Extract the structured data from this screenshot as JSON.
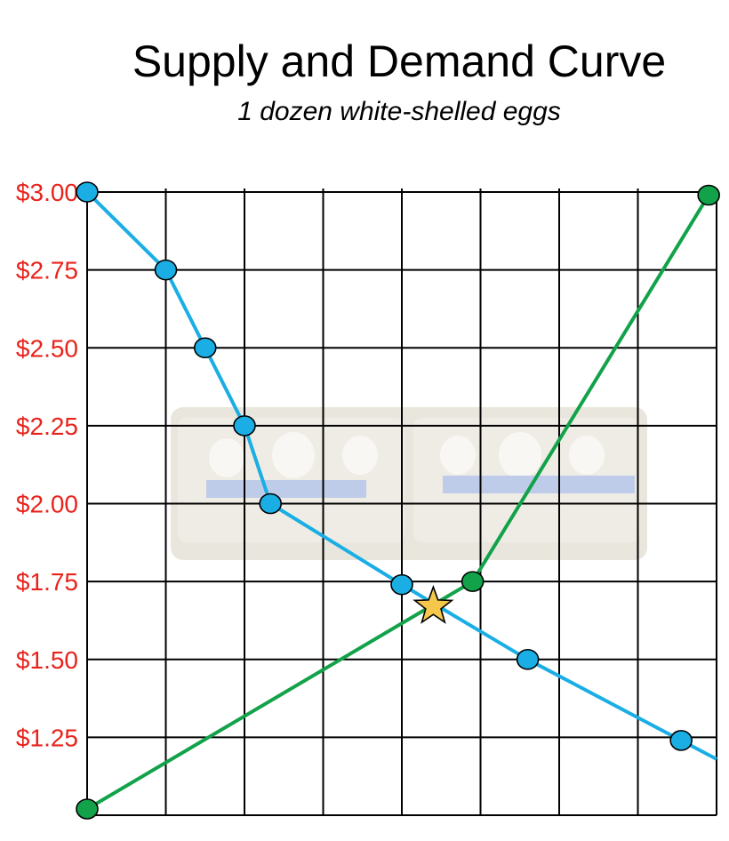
{
  "chart_data": {
    "type": "line",
    "title": "Supply and Demand Curve",
    "subtitle": "1 dozen white-shelled eggs",
    "xlabel": "",
    "ylabel": "",
    "xlim": [
      0,
      8
    ],
    "ylim": [
      1.0,
      3.0
    ],
    "grid": true,
    "y_ticks": [
      {
        "value": 3.0,
        "label": "$3.00"
      },
      {
        "value": 2.75,
        "label": "$2.75"
      },
      {
        "value": 2.5,
        "label": "$2.50"
      },
      {
        "value": 2.25,
        "label": "$2.25"
      },
      {
        "value": 2.0,
        "label": "$2.00"
      },
      {
        "value": 1.75,
        "label": "$1.75"
      },
      {
        "value": 1.5,
        "label": "$1.50"
      },
      {
        "value": 1.25,
        "label": "$1.25"
      }
    ],
    "series": [
      {
        "color": "#1aaee5",
        "line_end": {
          "x": 8.0,
          "y": 1.18
        },
        "points": [
          {
            "x": 0.0,
            "y": 3.0
          },
          {
            "x": 1.0,
            "y": 2.75
          },
          {
            "x": 1.5,
            "y": 2.5
          },
          {
            "x": 2.0,
            "y": 2.25
          },
          {
            "x": 2.33,
            "y": 2.0
          },
          {
            "x": 4.0,
            "y": 1.74
          },
          {
            "x": 5.6,
            "y": 1.5
          },
          {
            "x": 7.55,
            "y": 1.24
          }
        ]
      },
      {
        "color": "#12a24a",
        "points": [
          {
            "x": 0.0,
            "y": 1.02
          },
          {
            "x": 4.9,
            "y": 1.75
          },
          {
            "x": 7.9,
            "y": 2.99
          }
        ]
      }
    ],
    "equilibrium": {
      "x": 4.4,
      "y": 1.67,
      "marker": "star",
      "color": "#f5c84c"
    },
    "background_image": "egg-carton",
    "colors": {
      "tick_label": "#e8231c",
      "grid": "#000000",
      "marker_outline": "#000000"
    }
  }
}
